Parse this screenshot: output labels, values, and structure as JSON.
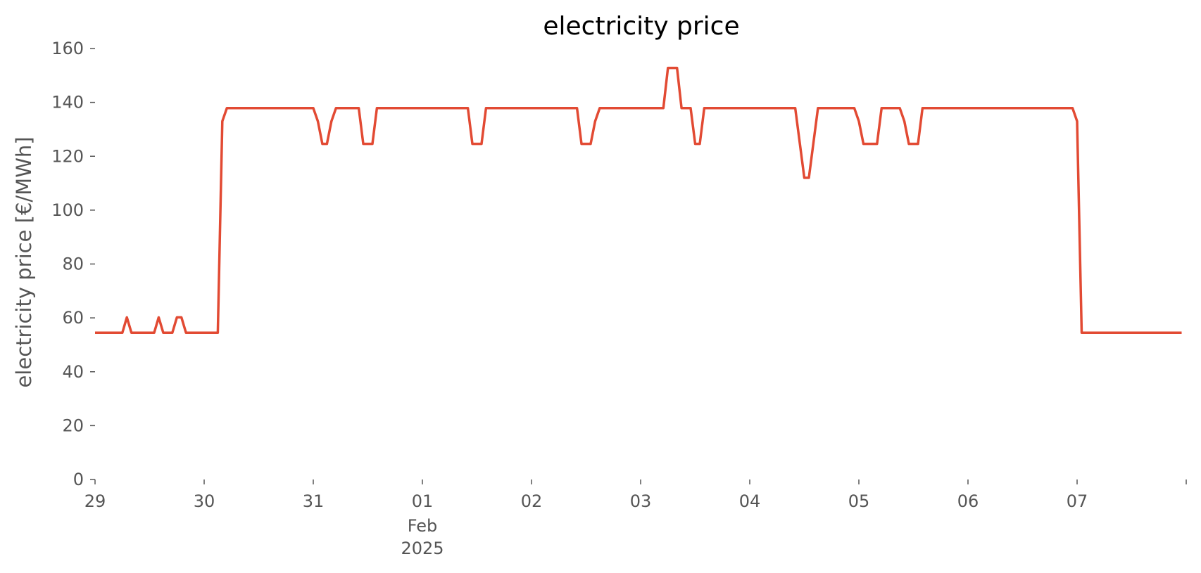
{
  "chart_data": {
    "type": "line",
    "title": "electricity price",
    "xlabel": "",
    "ylabel": "electricity price [€/MWh]",
    "x_axis_type": "date",
    "x_range": [
      "2025-01-29T00:00",
      "2025-02-07T23:00"
    ],
    "ylim": [
      0,
      160
    ],
    "y_ticks": [
      0,
      20,
      40,
      60,
      80,
      100,
      120,
      140,
      160
    ],
    "x_ticks": [
      {
        "date": "2025-01-29",
        "label": "29",
        "sublabel": ""
      },
      {
        "date": "2025-01-30",
        "label": "30",
        "sublabel": ""
      },
      {
        "date": "2025-01-31",
        "label": "31",
        "sublabel": ""
      },
      {
        "date": "2025-02-01",
        "label": "01",
        "sublabel": "Feb\n2025"
      },
      {
        "date": "2025-02-02",
        "label": "02",
        "sublabel": ""
      },
      {
        "date": "2025-02-03",
        "label": "03",
        "sublabel": ""
      },
      {
        "date": "2025-02-04",
        "label": "04",
        "sublabel": ""
      },
      {
        "date": "2025-02-05",
        "label": "05",
        "sublabel": ""
      },
      {
        "date": "2025-02-06",
        "label": "06",
        "sublabel": ""
      },
      {
        "date": "2025-02-07",
        "label": "07",
        "sublabel": ""
      }
    ],
    "grid": false,
    "legend": "none",
    "line_color": "#E24A33",
    "series": [
      {
        "name": "",
        "points": [
          [
            "2025-01-29T00:00",
            54.5
          ],
          [
            "2025-01-29T06:00",
            54.5
          ],
          [
            "2025-01-29T07:00",
            60.2
          ],
          [
            "2025-01-29T08:00",
            54.5
          ],
          [
            "2025-01-29T13:00",
            54.5
          ],
          [
            "2025-01-29T14:00",
            60.2
          ],
          [
            "2025-01-29T15:00",
            54.5
          ],
          [
            "2025-01-29T17:00",
            54.5
          ],
          [
            "2025-01-29T18:00",
            60.2
          ],
          [
            "2025-01-29T19:00",
            60.2
          ],
          [
            "2025-01-29T20:00",
            54.5
          ],
          [
            "2025-01-30T03:00",
            54.5
          ],
          [
            "2025-01-30T04:00",
            133.0
          ],
          [
            "2025-01-30T05:00",
            137.9
          ],
          [
            "2025-01-31T00:00",
            137.9
          ],
          [
            "2025-01-31T01:00",
            133.0
          ],
          [
            "2025-01-31T02:00",
            124.6
          ],
          [
            "2025-01-31T03:00",
            124.6
          ],
          [
            "2025-01-31T04:00",
            133.0
          ],
          [
            "2025-01-31T05:00",
            137.9
          ],
          [
            "2025-01-31T10:00",
            137.9
          ],
          [
            "2025-01-31T11:00",
            124.6
          ],
          [
            "2025-01-31T13:00",
            124.6
          ],
          [
            "2025-01-31T14:00",
            137.9
          ],
          [
            "2025-02-01T10:00",
            137.9
          ],
          [
            "2025-02-01T11:00",
            124.6
          ],
          [
            "2025-02-01T13:00",
            124.6
          ],
          [
            "2025-02-01T14:00",
            137.9
          ],
          [
            "2025-02-02T10:00",
            137.9
          ],
          [
            "2025-02-02T11:00",
            124.6
          ],
          [
            "2025-02-02T13:00",
            124.6
          ],
          [
            "2025-02-02T14:00",
            133.0
          ],
          [
            "2025-02-02T15:00",
            137.9
          ],
          [
            "2025-02-03T05:00",
            137.9
          ],
          [
            "2025-02-03T06:00",
            152.8
          ],
          [
            "2025-02-03T08:00",
            152.8
          ],
          [
            "2025-02-03T09:00",
            137.9
          ],
          [
            "2025-02-03T11:00",
            137.9
          ],
          [
            "2025-02-03T12:00",
            124.6
          ],
          [
            "2025-02-03T13:00",
            124.6
          ],
          [
            "2025-02-03T14:00",
            137.9
          ],
          [
            "2025-02-04T10:00",
            137.9
          ],
          [
            "2025-02-04T12:00",
            112.0
          ],
          [
            "2025-02-04T13:00",
            112.0
          ],
          [
            "2025-02-04T15:00",
            137.9
          ],
          [
            "2025-02-04T23:00",
            137.9
          ],
          [
            "2025-02-05T00:00",
            133.0
          ],
          [
            "2025-02-05T01:00",
            124.6
          ],
          [
            "2025-02-05T04:00",
            124.6
          ],
          [
            "2025-02-05T05:00",
            137.9
          ],
          [
            "2025-02-05T09:00",
            137.9
          ],
          [
            "2025-02-05T10:00",
            133.0
          ],
          [
            "2025-02-05T11:00",
            124.6
          ],
          [
            "2025-02-05T13:00",
            124.6
          ],
          [
            "2025-02-05T14:00",
            137.9
          ],
          [
            "2025-02-06T23:00",
            137.9
          ],
          [
            "2025-02-07T00:00",
            133.0
          ],
          [
            "2025-02-07T01:00",
            54.5
          ],
          [
            "2025-02-07T23:00",
            54.5
          ]
        ]
      }
    ]
  }
}
